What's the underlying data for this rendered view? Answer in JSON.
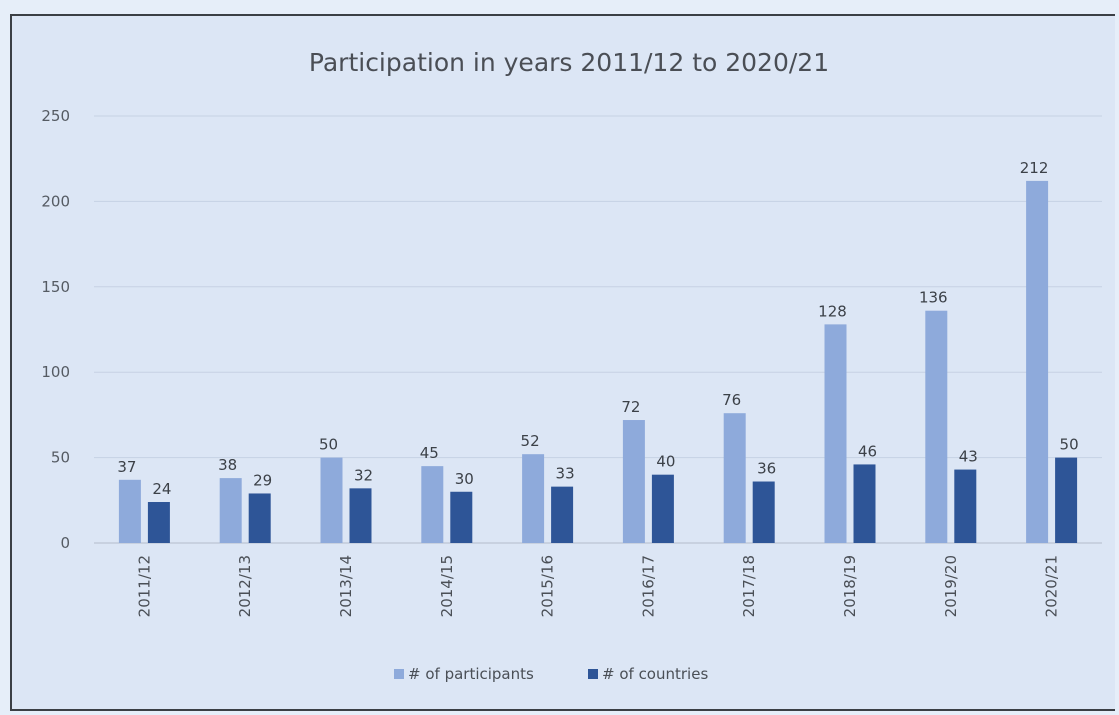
{
  "chart_data": {
    "type": "bar",
    "title": "Participation in years 2011/12 to 2020/21",
    "categories": [
      "2011/12",
      "2012/13",
      "2013/14",
      "2014/15",
      "2015/16",
      "2016/17",
      "2017/18",
      "2018/19",
      "2019/20",
      "2020/21"
    ],
    "series": [
      {
        "name": "# of participants",
        "values": [
          37,
          38,
          50,
          45,
          52,
          72,
          76,
          128,
          136,
          212
        ],
        "color": "#8eaadb"
      },
      {
        "name": "# of countries",
        "values": [
          24,
          29,
          32,
          30,
          33,
          40,
          36,
          46,
          43,
          50
        ],
        "color": "#2e5597"
      }
    ],
    "ylim": [
      0,
      250
    ],
    "yticks": [
      "0",
      "50",
      "100",
      "150",
      "200",
      "250"
    ],
    "grid": true,
    "legend": "bottom"
  }
}
